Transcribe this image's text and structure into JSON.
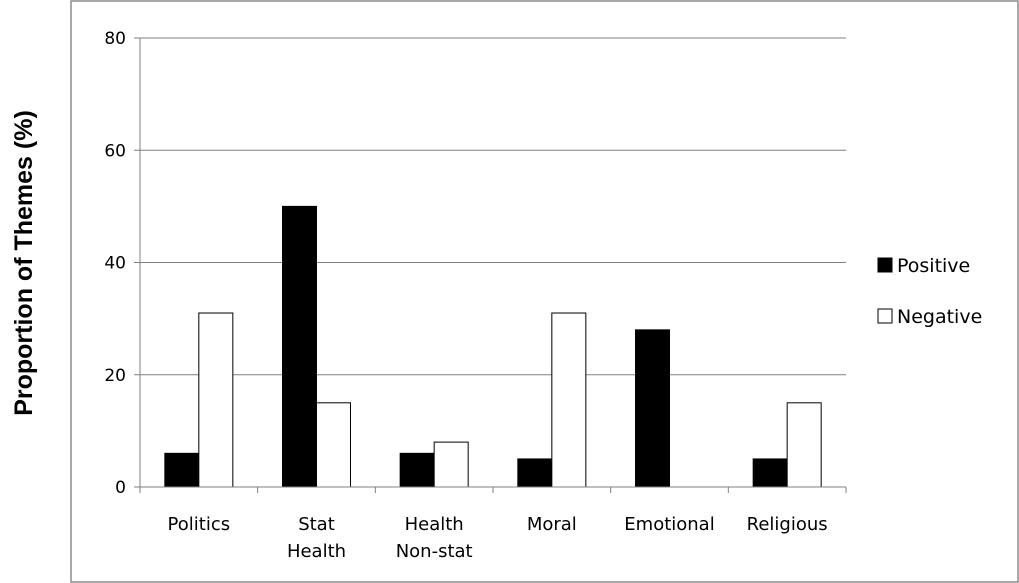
{
  "chart_data": {
    "type": "bar",
    "title": "",
    "xlabel": "",
    "ylabel": "Proportion of Themes (%)",
    "categories": [
      [
        "Politics"
      ],
      [
        "Stat",
        "Health"
      ],
      [
        "Health",
        "Non-stat"
      ],
      [
        "Moral"
      ],
      [
        "Emotional"
      ],
      [
        "Religious"
      ]
    ],
    "series": [
      {
        "name": "Positive",
        "values": [
          6,
          50,
          6,
          5,
          28,
          5
        ],
        "fill": "#000000"
      },
      {
        "name": "Negative",
        "values": [
          31,
          15,
          8,
          31,
          0,
          15
        ],
        "fill": "#ffffff"
      }
    ],
    "ylim": [
      0,
      80
    ],
    "yticks": [
      0,
      20,
      40,
      60,
      80
    ],
    "grid": true,
    "legend_position": "right",
    "colors": {
      "axis": "#808080",
      "grid": "#808080",
      "frame": "#8c8c8c",
      "bar_stroke": "#000000"
    }
  }
}
